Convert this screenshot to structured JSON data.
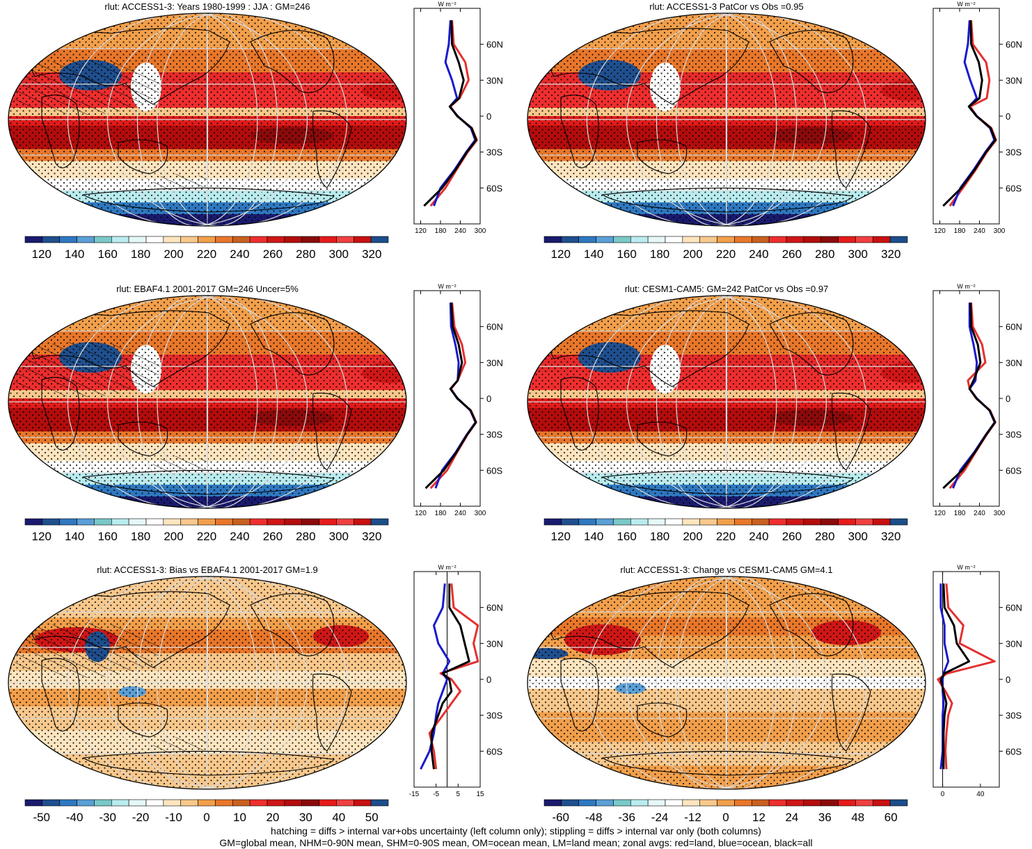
{
  "colors": {
    "ramp_abs": [
      "#1a1a6e",
      "#1f4f8e",
      "#2f78c0",
      "#5a9fd6",
      "#7ac8c8",
      "#b9ecef",
      "#e6f7f7",
      "#ffffff",
      "#fde5bf",
      "#f8c88c",
      "#f29f4b",
      "#e8772a",
      "#c8601f",
      "#ef2e2e",
      "#d01616",
      "#b30c0c",
      "#8b0a0a",
      "#e61b1b",
      "#f04040",
      "#c81010",
      "#1b4e8a"
    ],
    "ramp_diff": [
      "#1a1a6e",
      "#1f4f8e",
      "#2f78c0",
      "#5a9fd6",
      "#7ac8c8",
      "#b9ecef",
      "#e6f7f7",
      "#ffffff",
      "#fde5bf",
      "#f8c88c",
      "#f29f4b",
      "#e8772a",
      "#c8601f",
      "#ef2e2e",
      "#d01616",
      "#b30c0c",
      "#8b0a0a",
      "#e61b1b",
      "#f04040",
      "#c81010",
      "#1b4e8a"
    ],
    "land": "#e53030",
    "ocean": "#1a1acc",
    "all": "#000000"
  },
  "panels": [
    {
      "title": "rlut: ACCESS1-3: Years 1980-1999 : JJA : GM=246",
      "colorbar_labels": [
        "120",
        "140",
        "160",
        "180",
        "200",
        "220",
        "240",
        "260",
        "280",
        "300",
        "320"
      ],
      "profile_unit": "W m⁻²",
      "profile_xticks": [
        "120",
        "180",
        "240",
        "300"
      ],
      "profile_xlim": [
        100,
        300
      ],
      "profile_zero_line": false,
      "lat_labels": [
        "60N",
        "30N",
        "0",
        "30S",
        "60S"
      ],
      "map_kind": "abs",
      "hatch": "left"
    },
    {
      "title": "rlut: ACCESS1-3 PatCor vs Obs =0.95",
      "colorbar_labels": [
        "120",
        "140",
        "160",
        "180",
        "200",
        "220",
        "240",
        "260",
        "280",
        "300",
        "320"
      ],
      "profile_unit": "W m⁻²",
      "profile_xticks": [
        "120",
        "180",
        "240",
        "300"
      ],
      "profile_xlim": [
        100,
        300
      ],
      "profile_zero_line": false,
      "lat_labels": [
        "60N",
        "30N",
        "0",
        "30S",
        "60S"
      ],
      "map_kind": "abs",
      "hatch": "none"
    },
    {
      "title": "rlut: EBAF4.1 2001-2017 GM=246 Uncer=5%",
      "colorbar_labels": [
        "120",
        "140",
        "160",
        "180",
        "200",
        "220",
        "240",
        "260",
        "280",
        "300",
        "320"
      ],
      "profile_unit": "W m⁻²",
      "profile_xticks": [
        "120",
        "180",
        "240",
        "300"
      ],
      "profile_xlim": [
        100,
        300
      ],
      "profile_zero_line": false,
      "lat_labels": [
        "60N",
        "30N",
        "0",
        "30S",
        "60S"
      ],
      "map_kind": "abs",
      "hatch": "left"
    },
    {
      "title": "rlut: CESM1-CAM5: GM=242 PatCor vs Obs =0.97",
      "colorbar_labels": [
        "120",
        "140",
        "160",
        "180",
        "200",
        "220",
        "240",
        "260",
        "280",
        "300",
        "320"
      ],
      "profile_unit": "W m⁻²",
      "profile_xticks": [
        "120",
        "180",
        "240",
        "300"
      ],
      "profile_xlim": [
        100,
        300
      ],
      "profile_zero_line": false,
      "lat_labels": [
        "60N",
        "30N",
        "0",
        "30S",
        "60S"
      ],
      "map_kind": "abs",
      "hatch": "none"
    },
    {
      "title": "rlut: ACCESS1-3: Bias vs EBAF4.1 2001-2017 GM=1.9",
      "colorbar_labels": [
        "-50",
        "-40",
        "-30",
        "-20",
        "-10",
        "0",
        "10",
        "20",
        "30",
        "40",
        "50"
      ],
      "profile_unit": "W m⁻²",
      "profile_xticks": [
        "-15",
        "-5",
        "5",
        "15"
      ],
      "profile_xlim": [
        -15,
        15
      ],
      "profile_zero_line": true,
      "lat_labels": [
        "60N",
        "30N",
        "0",
        "30S",
        "60S"
      ],
      "map_kind": "diff",
      "hatch": "left"
    },
    {
      "title": "rlut: ACCESS1-3: Change vs CESM1-CAM5 GM=4.1",
      "colorbar_labels": [
        "-60",
        "-48",
        "-36",
        "-24",
        "-12",
        "0",
        "12",
        "24",
        "36",
        "48",
        "60"
      ],
      "profile_unit": "W m⁻²",
      "profile_xticks": [
        "0",
        "40"
      ],
      "profile_xlim": [
        -10,
        60
      ],
      "profile_zero_line": true,
      "lat_labels": [
        "60N",
        "30N",
        "0",
        "30S",
        "60S"
      ],
      "map_kind": "diff",
      "hatch": "none"
    }
  ],
  "chart_data": [
    {
      "type": "line",
      "title": "rlut: ACCESS1-3: Years 1980-1999 : JJA : GM=246",
      "xlabel": "W m-2",
      "xlim": [
        100,
        300
      ],
      "ylim": [
        -90,
        90
      ],
      "y": [
        80,
        60,
        45,
        30,
        15,
        8,
        0,
        -10,
        -20,
        -30,
        -45,
        -60,
        -75
      ],
      "series": [
        {
          "name": "land",
          "values": [
            215,
            220,
            255,
            265,
            238,
            210,
            230,
            275,
            290,
            262,
            228,
            195,
            150
          ]
        },
        {
          "name": "ocean",
          "values": [
            210,
            205,
            195,
            215,
            230,
            208,
            232,
            272,
            285,
            258,
            222,
            180,
            160
          ]
        },
        {
          "name": "all",
          "values": [
            213,
            215,
            235,
            250,
            236,
            208,
            231,
            274,
            288,
            260,
            225,
            185,
            130
          ]
        }
      ]
    },
    {
      "type": "line",
      "title": "rlut: ACCESS1-3 PatCor vs Obs =0.95",
      "xlabel": "W m-2",
      "xlim": [
        100,
        300
      ],
      "ylim": [
        -90,
        90
      ],
      "y": [
        80,
        60,
        45,
        30,
        15,
        8,
        0,
        -10,
        -20,
        -30,
        -45,
        -60,
        -75
      ],
      "series": [
        {
          "name": "land",
          "values": [
            215,
            220,
            260,
            270,
            262,
            212,
            232,
            276,
            290,
            262,
            228,
            190,
            150
          ]
        },
        {
          "name": "ocean",
          "values": [
            210,
            205,
            195,
            212,
            232,
            208,
            232,
            272,
            285,
            258,
            222,
            182,
            160
          ]
        },
        {
          "name": "all",
          "values": [
            213,
            215,
            238,
            248,
            240,
            208,
            231,
            274,
            288,
            260,
            225,
            185,
            130
          ]
        }
      ]
    },
    {
      "type": "line",
      "title": "rlut: EBAF4.1 2001-2017 GM=246 Uncer=5%",
      "xlabel": "W m-2",
      "xlim": [
        100,
        300
      ],
      "ylim": [
        -90,
        90
      ],
      "y": [
        80,
        60,
        45,
        30,
        15,
        8,
        0,
        -10,
        -20,
        -30,
        -45,
        -60,
        -75
      ],
      "series": [
        {
          "name": "land",
          "values": [
            215,
            222,
            245,
            255,
            232,
            212,
            230,
            272,
            288,
            262,
            230,
            200,
            150
          ]
        },
        {
          "name": "ocean",
          "values": [
            210,
            212,
            225,
            235,
            232,
            210,
            232,
            270,
            286,
            260,
            226,
            185,
            165
          ]
        },
        {
          "name": "all",
          "values": [
            213,
            217,
            235,
            245,
            232,
            210,
            231,
            271,
            287,
            261,
            228,
            190,
            135
          ]
        }
      ]
    },
    {
      "type": "line",
      "title": "rlut: CESM1-CAM5: GM=242 PatCor vs Obs =0.97",
      "xlabel": "W m-2",
      "xlim": [
        100,
        300
      ],
      "ylim": [
        -90,
        90
      ],
      "y": [
        80,
        60,
        45,
        30,
        15,
        8,
        0,
        -10,
        -20,
        -30,
        -45,
        -60,
        -75
      ],
      "series": [
        {
          "name": "land",
          "values": [
            215,
            220,
            248,
            258,
            205,
            210,
            230,
            272,
            288,
            262,
            228,
            195,
            150
          ]
        },
        {
          "name": "ocean",
          "values": [
            210,
            210,
            222,
            232,
            228,
            210,
            232,
            270,
            286,
            260,
            224,
            182,
            160
          ]
        },
        {
          "name": "all",
          "values": [
            213,
            215,
            235,
            243,
            222,
            210,
            231,
            271,
            287,
            261,
            226,
            188,
            130
          ]
        }
      ]
    },
    {
      "type": "line",
      "title": "rlut: ACCESS1-3: Bias vs EBAF4.1 2001-2017 GM=1.9",
      "xlabel": "W m-2",
      "xlim": [
        -15,
        15
      ],
      "ylim": [
        -90,
        90
      ],
      "y": [
        80,
        60,
        45,
        30,
        15,
        5,
        0,
        -10,
        -20,
        -30,
        -45,
        -60,
        -75
      ],
      "series": [
        {
          "name": "land",
          "values": [
            2,
            3,
            14,
            12,
            14,
            -3,
            2,
            6,
            2,
            -2,
            -8,
            -6,
            -5
          ]
        },
        {
          "name": "ocean",
          "values": [
            -1,
            -2,
            -6,
            -4,
            1,
            -2,
            0,
            -2,
            -4,
            -5,
            -6,
            -8,
            -12
          ]
        },
        {
          "name": "all",
          "values": [
            1,
            1,
            6,
            8,
            10,
            -2,
            1,
            2,
            -2,
            -4,
            -7,
            -7,
            -6
          ]
        }
      ]
    },
    {
      "type": "line",
      "title": "rlut: ACCESS1-3: Change vs CESM1-CAM5 GM=4.1",
      "xlabel": "W m-2",
      "xlim": [
        -10,
        60
      ],
      "ylim": [
        -90,
        90
      ],
      "y": [
        80,
        60,
        45,
        30,
        15,
        5,
        0,
        -10,
        -20,
        -30,
        -45,
        -60,
        -75
      ],
      "series": [
        {
          "name": "land",
          "values": [
            4,
            6,
            22,
            18,
            55,
            5,
            -5,
            3,
            10,
            6,
            4,
            3,
            4
          ]
        },
        {
          "name": "ocean",
          "values": [
            -2,
            -2,
            2,
            2,
            6,
            1,
            0,
            0,
            1,
            0,
            0,
            0,
            -2
          ]
        },
        {
          "name": "all",
          "values": [
            1,
            2,
            12,
            15,
            28,
            2,
            -2,
            1,
            4,
            2,
            1,
            1,
            1
          ]
        }
      ]
    }
  ],
  "footer": {
    "line1": "hatching = diffs > internal var+obs uncertainty (left column only); stippling = diffs > internal var only (both columns)",
    "line2": "GM=global mean, NHM=0-90N mean, SHM=0-90S mean, OM=ocean mean, LM=land mean; zonal avgs: red=land, blue=ocean, black=all"
  }
}
